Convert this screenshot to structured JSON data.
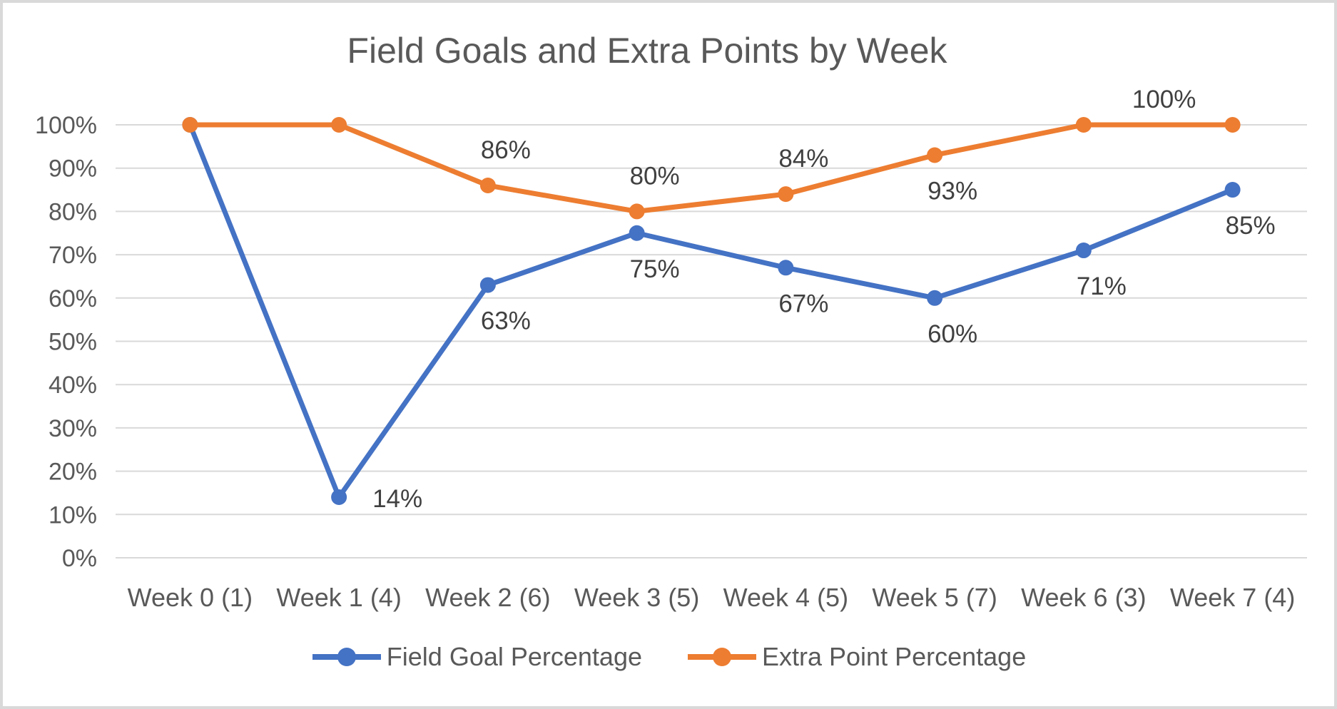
{
  "chart_data": {
    "type": "line",
    "title": "Field Goals and Extra Points by Week",
    "categories": [
      "Week 0 (1)",
      "Week 1 (4)",
      "Week 2 (6)",
      "Week 3 (5)",
      "Week 4 (5)",
      "Week 5 (7)",
      "Week 6 (3)",
      "Week 7 (4)"
    ],
    "series": [
      {
        "name": "Field Goal Percentage",
        "color": "#4472C4",
        "values": [
          100,
          14,
          63,
          75,
          67,
          60,
          71,
          85
        ],
        "labels": [
          null,
          "14%",
          "63%",
          "75%",
          "67%",
          "60%",
          "71%",
          "85%"
        ],
        "label_positions": [
          null,
          "right",
          "below",
          "below",
          "below",
          "below",
          "below",
          "below"
        ]
      },
      {
        "name": "Extra Point Percentage",
        "color": "#ED7D31",
        "values": [
          100,
          100,
          86,
          80,
          84,
          93,
          100,
          100
        ],
        "labels": [
          null,
          null,
          "86%",
          "80%",
          "84%",
          "93%",
          null,
          "100%"
        ],
        "label_positions": [
          null,
          null,
          "above",
          "above",
          "above",
          "below",
          null,
          "above-left"
        ]
      }
    ],
    "y_axis": {
      "min": 0,
      "max": 100,
      "step": 10,
      "ticks": [
        "0%",
        "10%",
        "20%",
        "30%",
        "40%",
        "50%",
        "60%",
        "70%",
        "80%",
        "90%",
        "100%"
      ]
    },
    "grid": true,
    "legend_position": "bottom",
    "colors": {
      "gridline": "#D9D9D9",
      "axis_text": "#595959",
      "data_label_text": "#404040",
      "frame_border": "#D9D9D9"
    }
  }
}
